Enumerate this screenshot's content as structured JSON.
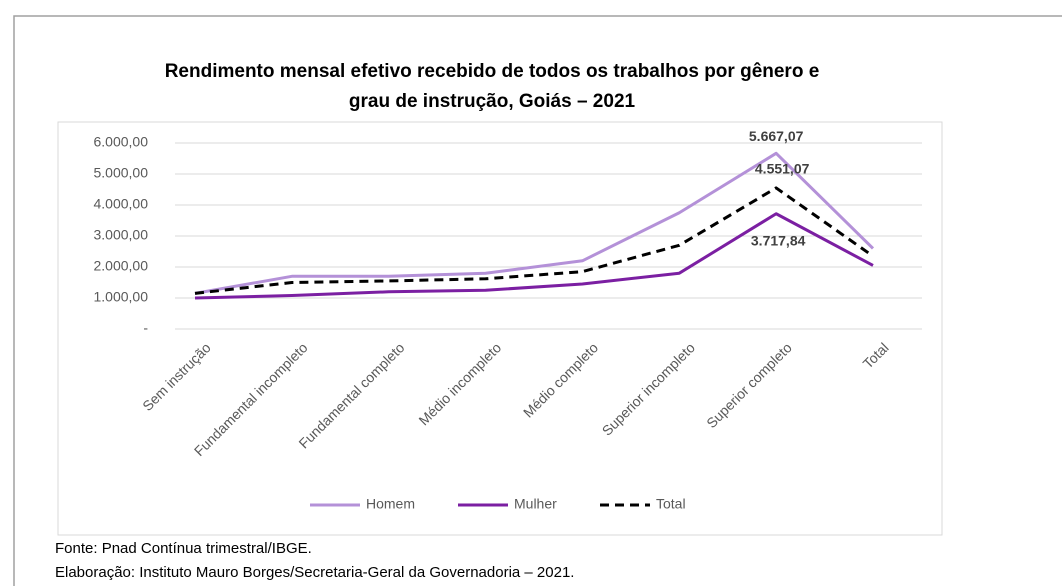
{
  "chart_data": {
    "type": "line",
    "title": [
      "Rendimento mensal efetivo recebido de todos os trabalhos por gênero e",
      "grau de instrução, Goiás – 2021"
    ],
    "categories": [
      "Sem instrução",
      "Fundamental incompleto",
      "Fundamental completo",
      "Médio incompleto",
      "Médio completo",
      "Superior incompleto",
      "Superior completo",
      "Total"
    ],
    "series": [
      {
        "name": "Homem",
        "color": "#b491d8",
        "values": [
          1150,
          1700,
          1700,
          1800,
          2200,
          3750,
          5667.07,
          2600
        ],
        "value_labels": [
          null,
          null,
          null,
          null,
          null,
          null,
          "5.667,07",
          null
        ]
      },
      {
        "name": "Mulher",
        "color": "#7b1fa2",
        "values": [
          1000,
          1080,
          1200,
          1250,
          1450,
          1800,
          3717.84,
          2050
        ],
        "value_labels": [
          null,
          null,
          null,
          null,
          null,
          null,
          "3.717,84",
          null
        ]
      },
      {
        "name": "Total",
        "color": "#000000",
        "dashed": true,
        "values": [
          1150,
          1500,
          1550,
          1620,
          1850,
          2700,
          4551.07,
          2350
        ],
        "value_labels": [
          null,
          null,
          null,
          null,
          null,
          null,
          "4.551,07",
          null
        ]
      }
    ],
    "ylim": [
      0,
      6000
    ],
    "yticks": [
      {
        "value": 0,
        "label": "-"
      },
      {
        "value": 1000,
        "label": "1.000,00"
      },
      {
        "value": 2000,
        "label": "2.000,00"
      },
      {
        "value": 3000,
        "label": "3.000,00"
      },
      {
        "value": 4000,
        "label": "4.000,00"
      },
      {
        "value": 5000,
        "label": "5.000,00"
      },
      {
        "value": 6000,
        "label": "6.000,00"
      }
    ],
    "grid": true,
    "legend": "bottom"
  },
  "footer": [
    "Fonte: Pnad Contínua trimestral/IBGE.",
    "Elaboração: Instituto Mauro Borges/Secretaria-Geral da Governadoria – 2021."
  ]
}
